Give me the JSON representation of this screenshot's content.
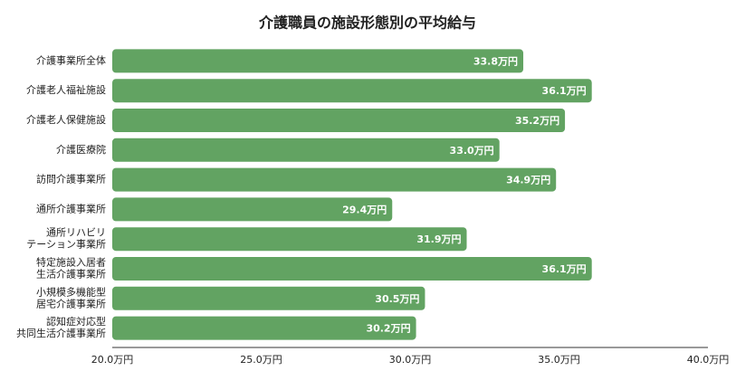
{
  "chart_data": {
    "type": "bar",
    "orientation": "horizontal",
    "title": "介護職員の施設形態別の平均給与",
    "categories": [
      [
        "介護事業所全体"
      ],
      [
        "介護老人福祉施設"
      ],
      [
        "介護老人保健施設"
      ],
      [
        "介護医療院"
      ],
      [
        "訪問介護事業所"
      ],
      [
        "通所介護事業所"
      ],
      [
        "通所リハビリ",
        "テーション事業所"
      ],
      [
        "特定施設入居者",
        "生活介護事業所"
      ],
      [
        "小規模多機能型",
        "居宅介護事業所"
      ],
      [
        "認知症対応型",
        "共同生活介護事業所"
      ]
    ],
    "values": [
      33.8,
      36.1,
      35.2,
      33.0,
      34.9,
      29.4,
      31.9,
      36.1,
      30.5,
      30.2
    ],
    "value_labels": [
      "33.8万円",
      "36.1万円",
      "35.2万円",
      "33.0万円",
      "34.9万円",
      "29.4万円",
      "31.9万円",
      "36.1万円",
      "30.5万円",
      "30.2万円"
    ],
    "color": "#62a362",
    "xlim": [
      20,
      40
    ],
    "xticks": [
      {
        "value": 20,
        "label": "20.0万円"
      },
      {
        "value": 25,
        "label": "25.0万円"
      },
      {
        "value": 30,
        "label": "30.0万円"
      },
      {
        "value": 35,
        "label": "35.0万円"
      },
      {
        "value": 40,
        "label": "40.0万円"
      }
    ],
    "grid": false
  }
}
